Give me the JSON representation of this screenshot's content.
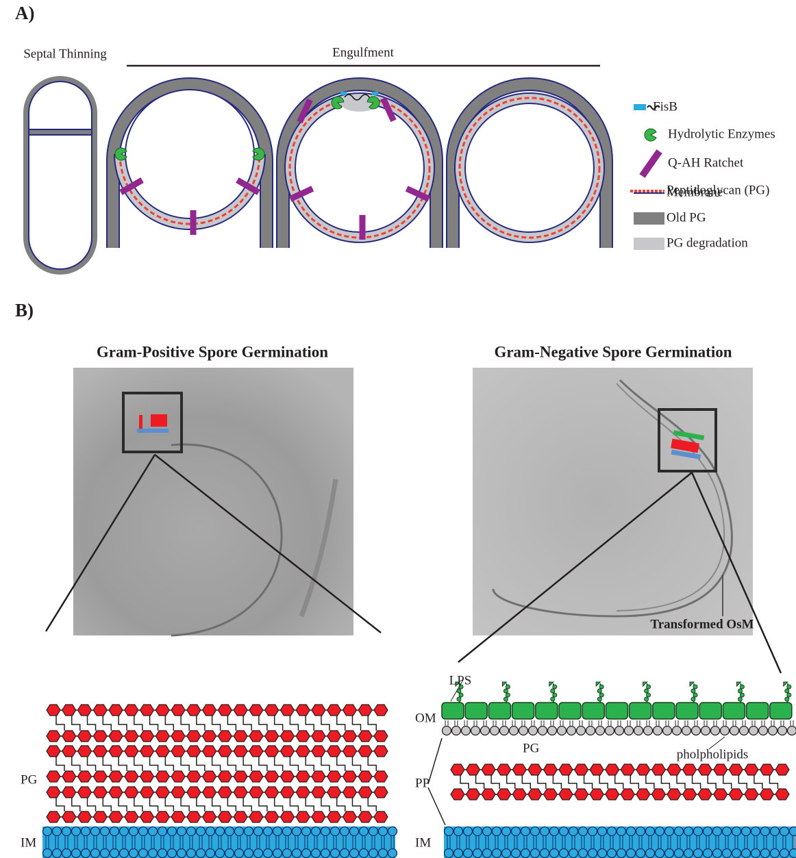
{
  "panel_a": {
    "label": "A)",
    "stages": [
      "Septal Thinning",
      "Engulfment"
    ],
    "legend": [
      "FisB",
      "Hydrolytic Enzymes",
      "Q-AH Ratchet",
      "Peptidoglycan (PG)",
      "Membrane",
      "Old PG",
      "PG degradation"
    ]
  },
  "panel_b": {
    "label": "B)",
    "left": {
      "title": "Gram-Positive Spore Germination",
      "layers": [
        "PG",
        "IM"
      ]
    },
    "right": {
      "title": "Gram-Negative Spore Germination",
      "annotation": "Transformed OsM",
      "labels": [
        "LPS",
        "OM",
        "PG",
        "pholpholipids",
        "PP",
        "IM"
      ]
    }
  }
}
